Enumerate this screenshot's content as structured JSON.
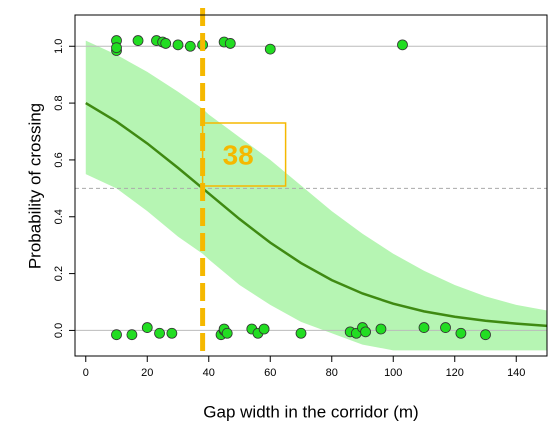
{
  "chart_data": {
    "type": "logistic",
    "xlabel": "Gap width in the corridor (m)",
    "ylabel": "Probability of crossing",
    "xlim": [
      -3.5,
      150
    ],
    "ylim": [
      -0.09,
      1.11
    ],
    "xticks": [
      0,
      20,
      40,
      60,
      80,
      100,
      120,
      140
    ],
    "yticks": [
      {
        "value": 0,
        "label": "0.0"
      },
      0.2,
      0.4,
      0.6,
      0.8,
      {
        "value": 1,
        "label": "1.0"
      }
    ],
    "hlines": [
      0,
      1
    ],
    "hline_dashed": 0.5,
    "threshold": 38,
    "threshold_color": "#f5b800",
    "fit": {
      "color": "#3f8a12",
      "band_color": "#b6f5b3",
      "x": [
        0,
        10,
        20,
        30,
        38,
        40,
        50,
        60,
        70,
        80,
        90,
        100,
        110,
        120,
        130,
        140,
        150
      ],
      "values": [
        0.8,
        0.735,
        0.658,
        0.572,
        0.5,
        0.482,
        0.392,
        0.309,
        0.237,
        0.177,
        0.13,
        0.094,
        0.067,
        0.048,
        0.034,
        0.024,
        0.016
      ],
      "upper": [
        1.02,
        0.97,
        0.91,
        0.84,
        0.78,
        0.76,
        0.68,
        0.6,
        0.51,
        0.42,
        0.34,
        0.27,
        0.21,
        0.16,
        0.12,
        0.09,
        0.07
      ],
      "lower": [
        0.55,
        0.5,
        0.42,
        0.33,
        0.27,
        0.25,
        0.16,
        0.09,
        0.03,
        -0.01,
        -0.05,
        -0.07,
        -0.07,
        -0.07,
        -0.07,
        -0.07,
        -0.07
      ]
    },
    "points": {
      "color": "#22dd22",
      "x": [
        10,
        10,
        10,
        17,
        23,
        25,
        26,
        30,
        34,
        38,
        45,
        47,
        60,
        103,
        10,
        15,
        20,
        24,
        28,
        44,
        45,
        45,
        46,
        54,
        56,
        58,
        70,
        86,
        88,
        90,
        91,
        96,
        110,
        117,
        122,
        130
      ],
      "y": [
        1.02,
        0.985,
        0.995,
        1.02,
        1.02,
        1.015,
        1.01,
        1.005,
        1.0,
        1.005,
        1.015,
        1.01,
        0.99,
        1.005,
        -0.015,
        -0.015,
        0.01,
        -0.01,
        -0.01,
        -0.015,
        0.0,
        0.005,
        -0.01,
        0.005,
        -0.01,
        0.005,
        -0.01,
        -0.005,
        -0.01,
        0.01,
        -0.005,
        0.005,
        0.01,
        0.01,
        -0.01,
        -0.015
      ]
    }
  }
}
